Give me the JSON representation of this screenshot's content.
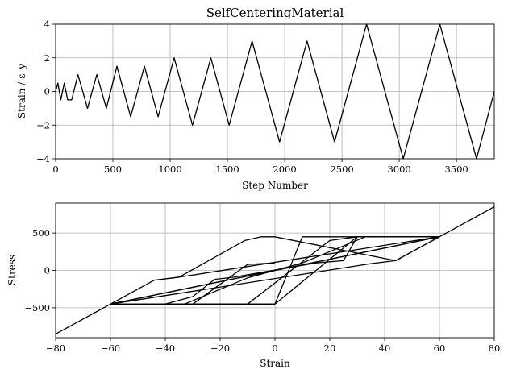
{
  "chart_data": [
    {
      "type": "line",
      "title": "SelfCenteringMaterial",
      "xlabel": "Step Number",
      "ylabel": "Strain / ε_y",
      "xlim": [
        0,
        3830
      ],
      "ylim": [
        -4,
        4
      ],
      "xticks": [
        "0",
        "500",
        "1000",
        "1500",
        "2000",
        "2500",
        "3000",
        "3500"
      ],
      "yticks": [
        "−4",
        "−2",
        "0",
        "2",
        "4"
      ],
      "grid": true,
      "series": [
        {
          "x": [
            0,
            20,
            45,
            75,
            105,
            140,
            195,
            278,
            360,
            443,
            535,
            655,
            775,
            895,
            1035,
            1195,
            1355,
            1515,
            1715,
            1955,
            2195,
            2435,
            2715,
            3035,
            3355,
            3675,
            3830
          ],
          "y": [
            0,
            0.5,
            -0.5,
            0.5,
            -0.5,
            -0.5,
            1.0,
            -1.0,
            1.0,
            -1.0,
            1.5,
            -1.5,
            1.5,
            -1.5,
            2.0,
            -2.0,
            2.0,
            -2.0,
            3.0,
            -3.0,
            3.0,
            -3.0,
            4.0,
            -4.0,
            4.0,
            -4.0,
            0
          ]
        }
      ]
    },
    {
      "type": "line",
      "title": "",
      "xlabel": "Strain",
      "ylabel": "Stress",
      "xlim": [
        -80,
        80
      ],
      "ylim": [
        -900,
        900
      ],
      "xticks": [
        "−80",
        "−60",
        "−40",
        "−20",
        "0",
        "20",
        "40",
        "60",
        "80"
      ],
      "yticks": [
        "−500",
        "0",
        "500"
      ],
      "grid": true,
      "series": [
        {
          "x": [
            0,
            10,
            33,
            60,
            -60,
            0
          ],
          "y": [
            0,
            100,
            450,
            450,
            -450,
            0
          ]
        },
        {
          "x": [
            0,
            -10,
            -33,
            -60,
            60,
            0
          ],
          "y": [
            0,
            -100,
            -450,
            -450,
            450,
            0
          ]
        },
        {
          "x": [
            -80,
            -60,
            -40,
            -30,
            -10,
            0,
            30,
            60,
            80
          ],
          "y": [
            -850,
            -450,
            -450,
            -450,
            -450,
            -450,
            450,
            450,
            850
          ]
        },
        {
          "x": [
            -40,
            -35,
            -10,
            0,
            10,
            40
          ],
          "y": [
            -450,
            -450,
            -450,
            -450,
            450,
            450
          ]
        },
        {
          "x": [
            -30,
            -25,
            -10,
            20,
            30
          ],
          "y": [
            -450,
            -450,
            -450,
            400,
            450
          ]
        },
        {
          "x": [
            -44,
            -35,
            -11,
            -5,
            0,
            44,
            60
          ],
          "y": [
            -130,
            -90,
            400,
            450,
            450,
            130,
            450
          ]
        },
        {
          "x": [
            -40,
            -30,
            -22,
            -15,
            15,
            25,
            30
          ],
          "y": [
            -450,
            -350,
            -120,
            -90,
            100,
            130,
            450
          ]
        },
        {
          "x": [
            -30,
            -10,
            0
          ],
          "y": [
            -450,
            80,
            100
          ]
        },
        {
          "x": [
            -60,
            -44,
            -35,
            60
          ],
          "y": [
            -450,
            -130,
            -90,
            450
          ]
        },
        {
          "x": [
            60,
            44,
            35,
            -60
          ],
          "y": [
            450,
            130,
            90,
            -450
          ]
        }
      ]
    }
  ]
}
